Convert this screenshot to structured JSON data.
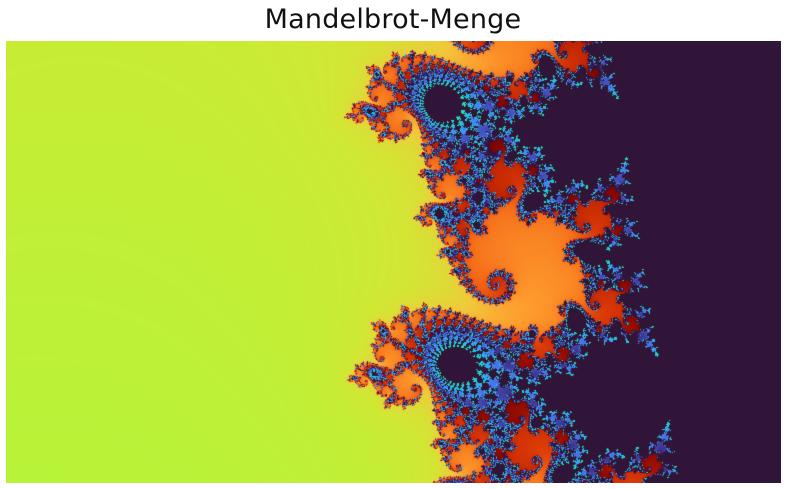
{
  "figure": {
    "title": "Mandelbrot-Menge"
  },
  "image": {
    "subject": "mandelbrot-set-detail",
    "palette": [
      "#30123b",
      "#4145ab",
      "#4675ed",
      "#39a2fc",
      "#1bcfd4",
      "#24eca6",
      "#61fc6c",
      "#a4fc3b",
      "#d1e834",
      "#f3c63a",
      "#fe9b2d",
      "#f36315",
      "#d93806",
      "#b11901",
      "#7a0402"
    ],
    "interior_color": "#311539",
    "exterior_color": "#3b3584"
  }
}
